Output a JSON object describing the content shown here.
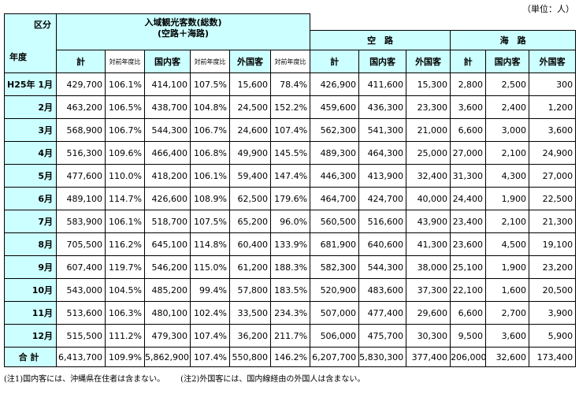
{
  "unit": "（単位：人）",
  "header": {
    "corner_top": "区分",
    "corner_bottom": "年度",
    "total_group_line1": "入域観光客数(総数)",
    "total_group_line2": "(空路＋海路)",
    "air_group": "空　路",
    "sea_group": "海　路",
    "col_total": "計",
    "col_yoy": "対前年度比",
    "col_domestic": "国内客",
    "col_foreign": "外国客"
  },
  "rows": [
    {
      "label": "H25年 1月",
      "c": [
        "429,700",
        "106.1%",
        "414,100",
        "107.5%",
        "15,600",
        "78.4%",
        "426,900",
        "411,600",
        "15,300",
        "2,800",
        "2,500",
        "300"
      ]
    },
    {
      "label": "2月",
      "c": [
        "463,200",
        "106.5%",
        "438,700",
        "104.8%",
        "24,500",
        "152.2%",
        "459,600",
        "436,300",
        "23,300",
        "3,600",
        "2,400",
        "1,200"
      ]
    },
    {
      "label": "3月",
      "c": [
        "568,900",
        "106.7%",
        "544,300",
        "106.7%",
        "24,600",
        "107.4%",
        "562,300",
        "541,300",
        "21,000",
        "6,600",
        "3,000",
        "3,600"
      ]
    },
    {
      "label": "4月",
      "c": [
        "516,300",
        "109.6%",
        "466,400",
        "106.8%",
        "49,900",
        "145.5%",
        "489,300",
        "464,300",
        "25,000",
        "27,000",
        "2,100",
        "24,900"
      ]
    },
    {
      "label": "5月",
      "c": [
        "477,600",
        "110.0%",
        "418,200",
        "106.1%",
        "59,400",
        "147.4%",
        "446,300",
        "413,900",
        "32,400",
        "31,300",
        "4,300",
        "27,000"
      ]
    },
    {
      "label": "6月",
      "c": [
        "489,100",
        "114.7%",
        "426,600",
        "108.9%",
        "62,500",
        "179.6%",
        "464,700",
        "424,700",
        "40,000",
        "24,400",
        "1,900",
        "22,500"
      ]
    },
    {
      "label": "7月",
      "c": [
        "583,900",
        "106.1%",
        "518,700",
        "107.5%",
        "65,200",
        "96.0%",
        "560,500",
        "516,600",
        "43,900",
        "23,400",
        "2,100",
        "21,300"
      ]
    },
    {
      "label": "8月",
      "c": [
        "705,500",
        "116.2%",
        "645,100",
        "114.8%",
        "60,400",
        "133.9%",
        "681,900",
        "640,600",
        "41,300",
        "23,600",
        "4,500",
        "19,100"
      ]
    },
    {
      "label": "9月",
      "c": [
        "607,400",
        "119.7%",
        "546,200",
        "115.0%",
        "61,200",
        "188.3%",
        "582,300",
        "544,300",
        "38,000",
        "25,100",
        "1,900",
        "23,200"
      ]
    },
    {
      "label": "10月",
      "c": [
        "543,000",
        "104.5%",
        "485,200",
        "99.4%",
        "57,800",
        "183.5%",
        "520,900",
        "483,600",
        "37,300",
        "22,100",
        "1,600",
        "20,500"
      ]
    },
    {
      "label": "11月",
      "c": [
        "513,600",
        "106.3%",
        "480,100",
        "102.4%",
        "33,500",
        "234.3%",
        "507,000",
        "477,400",
        "29,600",
        "6,600",
        "2,700",
        "3,900"
      ]
    },
    {
      "label": "12月",
      "c": [
        "515,500",
        "111.2%",
        "479,300",
        "107.4%",
        "36,200",
        "211.7%",
        "506,000",
        "475,700",
        "30,300",
        "9,500",
        "3,600",
        "5,900"
      ]
    }
  ],
  "total_row": {
    "label": "合 計",
    "c": [
      "6,413,700",
      "109.9%",
      "5,862,900",
      "107.4%",
      "550,800",
      "146.2%",
      "6,207,700",
      "5,830,300",
      "377,400",
      "206,000",
      "32,600",
      "173,400"
    ]
  },
  "notes": [
    "(注1)国内客には、沖縄県在住者は含まない。",
    "(注2)外国客には、国内線経由の外国人は含まない。"
  ]
}
